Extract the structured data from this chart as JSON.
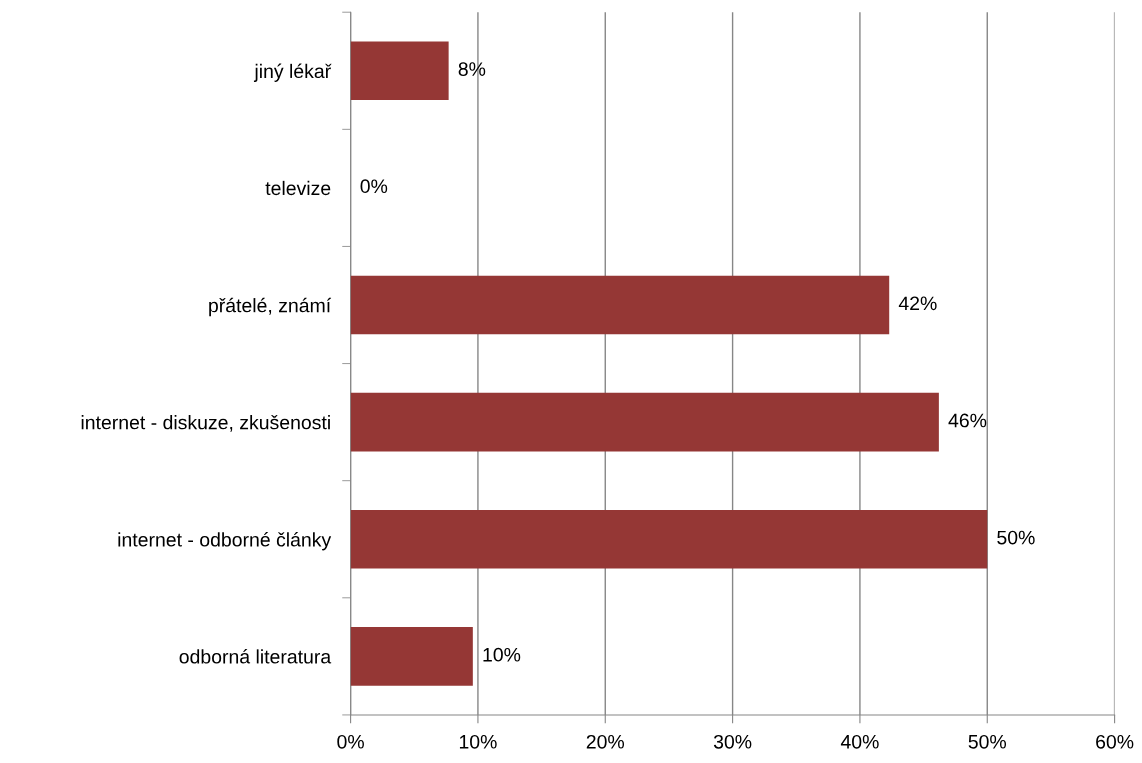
{
  "chart_data": {
    "type": "bar",
    "orientation": "horizontal",
    "categories": [
      "jiný lékař",
      "televize",
      "přátelé, známí",
      "internet - diskuze, zkušenosti",
      "internet - odborné články",
      "odborná literatura"
    ],
    "values": [
      7.7,
      0,
      42.3,
      46.2,
      50,
      9.6
    ],
    "value_labels": [
      "8%",
      "0%",
      "42%",
      "46%",
      "50%",
      "10%"
    ],
    "color": "#953735",
    "xlim": [
      0,
      60
    ],
    "xticks": [
      {
        "value": 0,
        "label": "0%"
      },
      {
        "value": 10,
        "label": "10%"
      },
      {
        "value": 20,
        "label": "20%"
      },
      {
        "value": 30,
        "label": "30%"
      },
      {
        "value": 40,
        "label": "40%"
      },
      {
        "value": 50,
        "label": "50%"
      },
      {
        "value": 60,
        "label": "60%"
      }
    ],
    "grid": "x"
  }
}
